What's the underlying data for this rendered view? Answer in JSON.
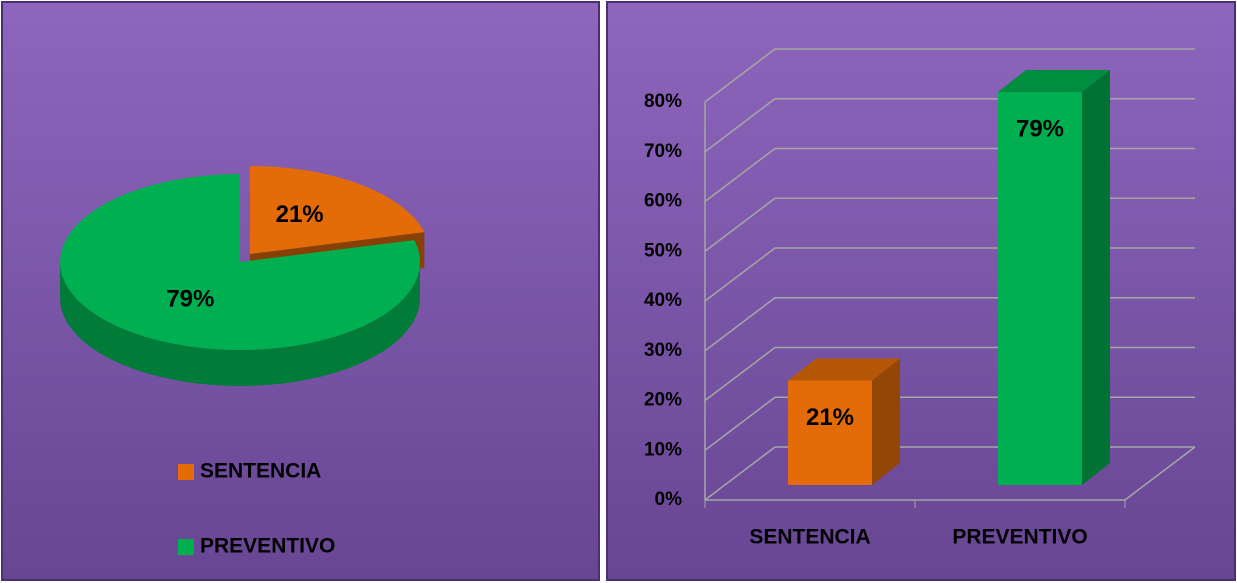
{
  "chart_data": [
    {
      "type": "pie",
      "categories": [
        "SENTENCIA",
        "PREVENTIVO"
      ],
      "values": [
        21,
        79
      ],
      "value_labels": [
        "21%",
        "79%"
      ],
      "colors": [
        "#e36c09",
        "#00b050"
      ],
      "legend": "bottom"
    },
    {
      "type": "bar",
      "categories": [
        "SENTENCIA",
        "PREVENTIVO"
      ],
      "values": [
        21,
        79
      ],
      "value_labels": [
        "21%",
        "79%"
      ],
      "colors": [
        "#e36c09",
        "#00b050"
      ],
      "ylim": [
        0,
        80
      ],
      "yticks": [
        {
          "value": 0,
          "label": "0%"
        },
        {
          "value": 10,
          "label": "10%"
        },
        {
          "value": 20,
          "label": "20%"
        },
        {
          "value": 30,
          "label": "30%"
        },
        {
          "value": 40,
          "label": "40%"
        },
        {
          "value": 50,
          "label": "50%"
        },
        {
          "value": 60,
          "label": "60%"
        },
        {
          "value": 70,
          "label": "70%"
        },
        {
          "value": 80,
          "label": "80%"
        }
      ],
      "grid": true
    }
  ]
}
